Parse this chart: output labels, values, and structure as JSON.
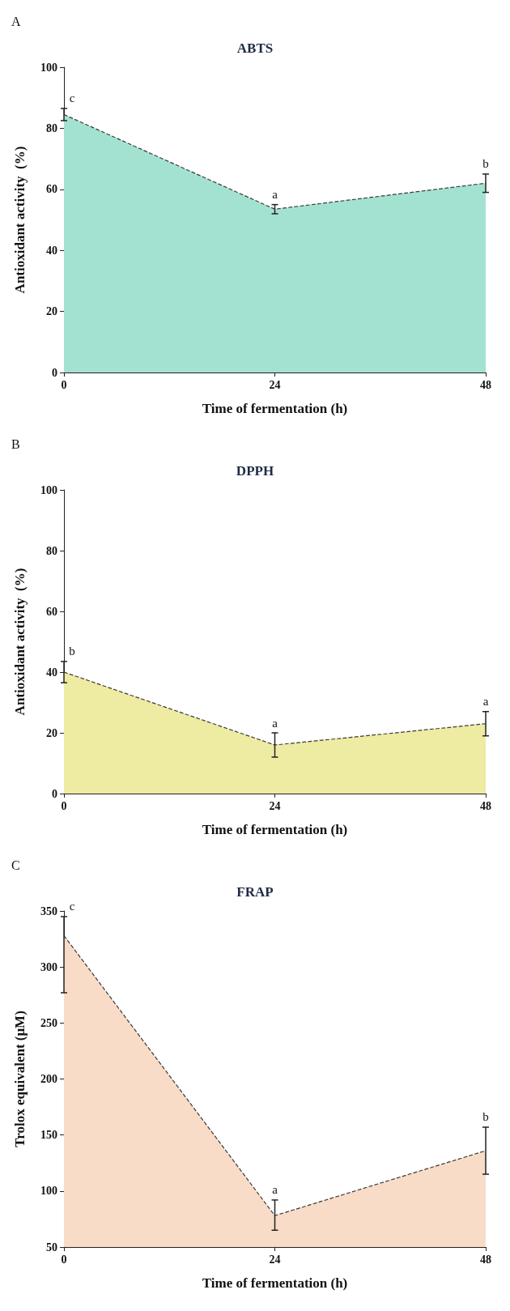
{
  "chart_data": [
    {
      "type": "area",
      "title": "ABTS",
      "xlabel": "Time of fermentation (h)",
      "ylabel": "Antioxidant activity  (%)",
      "x": [
        0,
        24,
        48
      ],
      "series": [
        {
          "color": "#a3e2d1",
          "values": [
            84.5,
            53.5,
            62
          ],
          "errors": [
            2,
            1.5,
            3
          ]
        }
      ],
      "xlim": [
        0,
        48
      ],
      "xticks": [
        0,
        24,
        48
      ],
      "ylim": [
        0,
        100
      ],
      "yticks": [
        0,
        20,
        40,
        60,
        80,
        100
      ],
      "grid": false,
      "marker": "none",
      "line_style": "dashed",
      "annotations": [
        "A",
        {
          "text": "c",
          "x": 0,
          "y": 84.5
        },
        {
          "text": "a",
          "x": 24,
          "y": 53.5
        },
        {
          "text": "b",
          "x": 48,
          "y": 62
        }
      ]
    },
    {
      "type": "area",
      "title": "DPPH",
      "xlabel": "Time of fermentation (h)",
      "ylabel": "Antioxidant activity  (%)",
      "x": [
        0,
        24,
        48
      ],
      "series": [
        {
          "color": "#eeeba2",
          "values": [
            40,
            16,
            23
          ],
          "errors": [
            3.5,
            4,
            4
          ]
        }
      ],
      "xlim": [
        0,
        48
      ],
      "xticks": [
        0,
        24,
        48
      ],
      "ylim": [
        0,
        100
      ],
      "yticks": [
        0,
        20,
        40,
        60,
        80,
        100
      ],
      "grid": false,
      "marker": "none",
      "line_style": "dashed",
      "annotations": [
        "B",
        {
          "text": "b",
          "x": 0,
          "y": 40
        },
        {
          "text": "a",
          "x": 24,
          "y": 16
        },
        {
          "text": "a",
          "x": 48,
          "y": 23
        }
      ]
    },
    {
      "type": "area",
      "title": "FRAP",
      "xlabel": "Time of fermentation (h)",
      "ylabel": "Trolox equivalent (μM)",
      "x": [
        0,
        24,
        48
      ],
      "series": [
        {
          "color": "#f8dcc8",
          "values": [
            328,
            78,
            136
          ],
          "errors": [
            [
              277,
              345
            ],
            [
              65,
              92
            ],
            [
              115,
              157
            ]
          ]
        }
      ],
      "xlim": [
        0,
        48
      ],
      "xticks": [
        0,
        24,
        48
      ],
      "ylim": [
        50,
        350
      ],
      "yticks": [
        50,
        100,
        150,
        200,
        250,
        300,
        350
      ],
      "grid": false,
      "marker": "none",
      "line_style": "dashed",
      "annotations": [
        "C",
        {
          "text": "c",
          "x": 0,
          "y": 328
        },
        {
          "text": "a",
          "x": 24,
          "y": 78
        },
        {
          "text": "b",
          "x": 48,
          "y": 136
        }
      ]
    }
  ]
}
